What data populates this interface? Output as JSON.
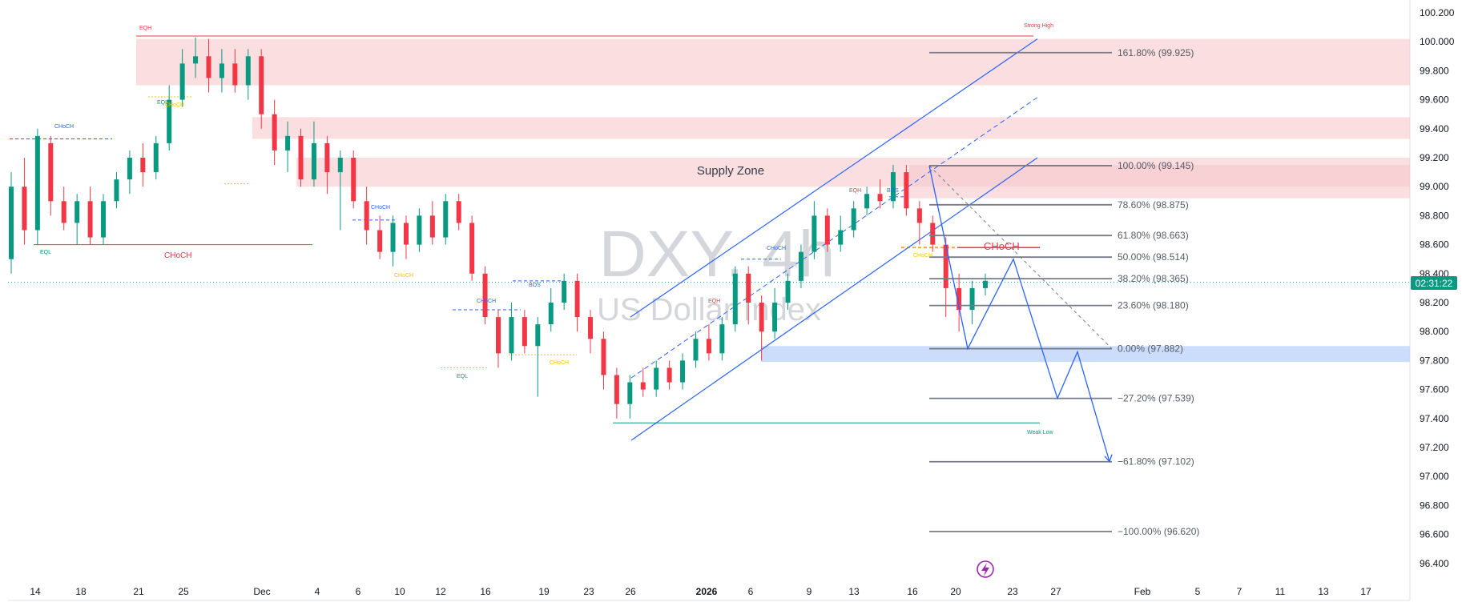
{
  "watermark": {
    "symbol": "DXY, 4h",
    "name": "US Dollar Index"
  },
  "price_tag": {
    "countdown": "02:31:22",
    "color": "#089981"
  },
  "colors": {
    "up": "#089981",
    "down": "#f23645",
    "supply": "#f7c9cd",
    "demand": "#c6d8fb",
    "channel": "#2962ff",
    "fib": "#787b86",
    "choch": "#f23645"
  },
  "chart_data": {
    "type": "candlestick",
    "symbol": "DXY",
    "timeframe": "4h",
    "y_axis": {
      "min": 96.3,
      "max": 100.3,
      "ticks": [
        100.2,
        100.0,
        99.8,
        99.6,
        99.4,
        99.2,
        99.0,
        98.8,
        98.6,
        98.4,
        98.2,
        98.0,
        97.8,
        97.6,
        97.4,
        97.2,
        97.0,
        96.8,
        96.6,
        96.4
      ],
      "tick_labels": [
        "100.200",
        "100.000",
        "99.800",
        "99.600",
        "99.400",
        "99.200",
        "99.000",
        "98.800",
        "98.600",
        "98.400",
        "98.200",
        "98.000",
        "97.800",
        "97.600",
        "97.400",
        "97.200",
        "97.000",
        "96.800",
        "96.600",
        "96.400"
      ]
    },
    "x_axis": {
      "ticks": [
        "14",
        "18",
        "21",
        "25",
        "Dec",
        "4",
        "6",
        "10",
        "12",
        "16",
        "19",
        "23",
        "26",
        "2026",
        "6",
        "9",
        "13",
        "16",
        "20",
        "23",
        "27",
        "Feb",
        "5",
        "7",
        "11",
        "13",
        "17"
      ],
      "bold": [
        "2026"
      ]
    },
    "zones": [
      {
        "label": "",
        "top": 100.02,
        "bottom": 99.7,
        "kind": "supply"
      },
      {
        "label": "",
        "top": 99.48,
        "bottom": 99.33,
        "kind": "supply"
      },
      {
        "label": "Supply Zone",
        "top": 99.2,
        "bottom": 99.0,
        "kind": "supply"
      },
      {
        "label": "",
        "top": 99.15,
        "bottom": 98.92,
        "kind": "supply"
      },
      {
        "label": "",
        "top": 97.9,
        "bottom": 97.79,
        "kind": "demand"
      }
    ],
    "fib_levels": [
      {
        "label": "161.80% (99.925)",
        "price": 99.925
      },
      {
        "label": "100.00% (99.145)",
        "price": 99.145
      },
      {
        "label": "78.60% (98.875)",
        "price": 98.875
      },
      {
        "label": "61.80% (98.663)",
        "price": 98.663
      },
      {
        "label": "50.00% (98.514)",
        "price": 98.514
      },
      {
        "label": "38.20% (98.365)",
        "price": 98.365
      },
      {
        "label": "23.60% (98.180)",
        "price": 98.18
      },
      {
        "label": "0.00% (97.882)",
        "price": 97.882
      },
      {
        "label": "−27.20% (97.539)",
        "price": 97.539
      },
      {
        "label": "−61.80% (97.102)",
        "price": 97.102
      },
      {
        "label": "−100.00% (96.620)",
        "price": 96.62
      }
    ],
    "markers": {
      "strong_high": "Strong High",
      "weak_low": "Weak Low",
      "eqh": "EQH",
      "eql": "EQL",
      "choch": "CHoCH",
      "bos": "BOS"
    },
    "choch_level": {
      "label": "CHoCH",
      "price": 98.58
    },
    "current_price": 98.34,
    "candles": [
      [
        98.5,
        99.0,
        99.1,
        98.4
      ],
      [
        99.0,
        98.7,
        99.2,
        98.6
      ],
      [
        98.7,
        99.35,
        99.4,
        98.6
      ],
      [
        99.3,
        98.9,
        99.35,
        98.8
      ],
      [
        98.9,
        98.75,
        99.0,
        98.7
      ],
      [
        98.75,
        98.9,
        98.95,
        98.6
      ],
      [
        98.9,
        98.65,
        99.0,
        98.6
      ],
      [
        98.65,
        98.9,
        98.95,
        98.6
      ],
      [
        98.9,
        99.05,
        99.1,
        98.85
      ],
      [
        99.05,
        99.2,
        99.25,
        98.95
      ],
      [
        99.2,
        99.1,
        99.3,
        99.0
      ],
      [
        99.1,
        99.3,
        99.35,
        99.05
      ],
      [
        99.3,
        99.6,
        99.7,
        99.25
      ],
      [
        99.6,
        99.85,
        99.95,
        99.55
      ],
      [
        99.85,
        99.9,
        100.03,
        99.75
      ],
      [
        99.9,
        99.75,
        100.02,
        99.65
      ],
      [
        99.75,
        99.85,
        99.95,
        99.65
      ],
      [
        99.85,
        99.7,
        99.95,
        99.65
      ],
      [
        99.7,
        99.9,
        99.95,
        99.6
      ],
      [
        99.9,
        99.5,
        99.95,
        99.4
      ],
      [
        99.5,
        99.25,
        99.6,
        99.15
      ],
      [
        99.25,
        99.35,
        99.45,
        99.1
      ],
      [
        99.35,
        99.05,
        99.4,
        99.0
      ],
      [
        99.05,
        99.3,
        99.45,
        99.0
      ],
      [
        99.3,
        99.1,
        99.35,
        98.95
      ],
      [
        99.1,
        99.2,
        99.25,
        98.7
      ],
      [
        99.2,
        98.9,
        99.25,
        98.85
      ],
      [
        98.9,
        98.7,
        99.0,
        98.6
      ],
      [
        98.7,
        98.55,
        98.8,
        98.5
      ],
      [
        98.55,
        98.75,
        98.8,
        98.45
      ],
      [
        98.75,
        98.6,
        98.8,
        98.5
      ],
      [
        98.6,
        98.8,
        98.85,
        98.55
      ],
      [
        98.8,
        98.65,
        98.9,
        98.6
      ],
      [
        98.65,
        98.9,
        98.95,
        98.6
      ],
      [
        98.9,
        98.75,
        98.95,
        98.7
      ],
      [
        98.75,
        98.4,
        98.8,
        98.35
      ],
      [
        98.4,
        98.1,
        98.45,
        98.05
      ],
      [
        98.1,
        97.85,
        98.15,
        97.75
      ],
      [
        97.85,
        98.1,
        98.2,
        97.8
      ],
      [
        98.1,
        97.9,
        98.15,
        97.85
      ],
      [
        97.9,
        98.05,
        98.1,
        97.55
      ],
      [
        98.05,
        98.2,
        98.3,
        98.0
      ],
      [
        98.2,
        98.35,
        98.4,
        98.15
      ],
      [
        98.35,
        98.1,
        98.4,
        98.0
      ],
      [
        98.1,
        97.95,
        98.15,
        97.85
      ],
      [
        97.95,
        97.7,
        98.0,
        97.6
      ],
      [
        97.7,
        97.5,
        97.75,
        97.4
      ],
      [
        97.5,
        97.65,
        97.7,
        97.4
      ],
      [
        97.65,
        97.6,
        97.75,
        97.55
      ],
      [
        97.6,
        97.75,
        97.8,
        97.55
      ],
      [
        97.75,
        97.65,
        97.8,
        97.6
      ],
      [
        97.65,
        97.8,
        97.85,
        97.6
      ],
      [
        97.8,
        97.95,
        98.0,
        97.75
      ],
      [
        97.95,
        97.85,
        98.05,
        97.8
      ],
      [
        97.85,
        98.05,
        98.1,
        97.8
      ],
      [
        98.05,
        98.4,
        98.45,
        98.0
      ],
      [
        98.4,
        98.2,
        98.45,
        98.05
      ],
      [
        98.2,
        98.0,
        98.25,
        97.8
      ],
      [
        98.0,
        98.2,
        98.3,
        97.95
      ],
      [
        98.2,
        98.35,
        98.4,
        98.15
      ],
      [
        98.35,
        98.55,
        98.6,
        98.3
      ],
      [
        98.55,
        98.8,
        98.9,
        98.5
      ],
      [
        98.8,
        98.6,
        98.85,
        98.55
      ],
      [
        98.6,
        98.7,
        98.8,
        98.55
      ],
      [
        98.7,
        98.85,
        98.9,
        98.65
      ],
      [
        98.85,
        98.95,
        99.0,
        98.8
      ],
      [
        98.95,
        98.9,
        99.05,
        98.85
      ],
      [
        98.9,
        99.1,
        99.15,
        98.85
      ],
      [
        99.1,
        98.85,
        99.15,
        98.8
      ],
      [
        98.85,
        98.75,
        98.9,
        98.6
      ],
      [
        98.75,
        98.6,
        98.8,
        98.55
      ],
      [
        98.6,
        98.3,
        98.65,
        98.1
      ],
      [
        98.3,
        98.15,
        98.4,
        98.0
      ],
      [
        98.15,
        98.3,
        98.35,
        98.05
      ],
      [
        98.3,
        98.35,
        98.4,
        98.25
      ]
    ]
  }
}
